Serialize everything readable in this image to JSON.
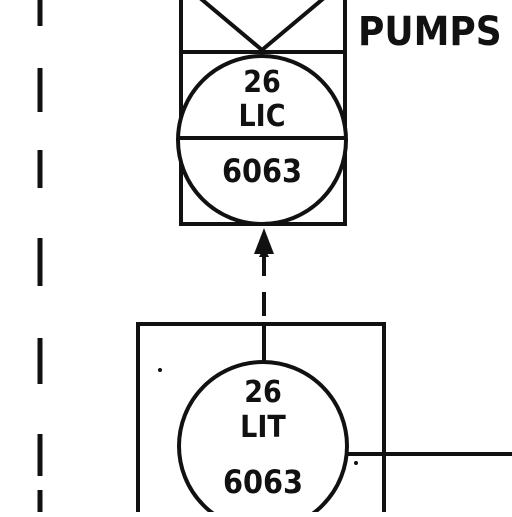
{
  "diagram": {
    "label_pumps": "PUMPS",
    "upper_instrument": {
      "loop_number": "26",
      "function": "LIC",
      "tag_number": "6063"
    },
    "lower_instrument": {
      "loop_number": "26",
      "function": "LIT",
      "tag_number": "6063"
    },
    "line_color": "#111111",
    "background": "#ffffff"
  }
}
